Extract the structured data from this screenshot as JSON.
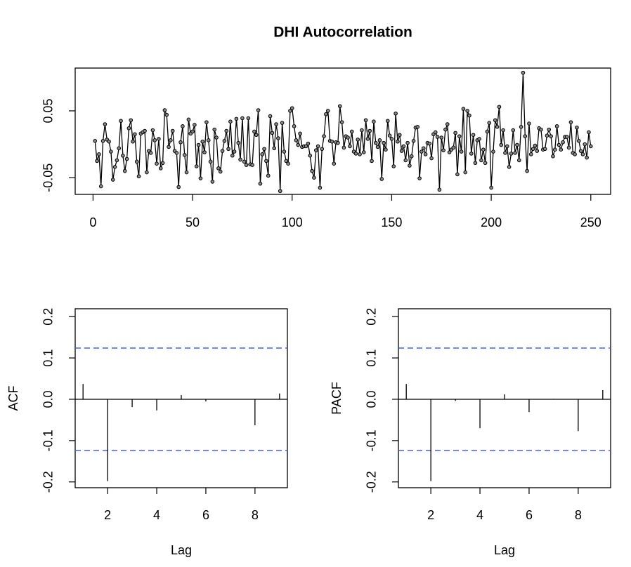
{
  "chart_data": [
    {
      "type": "line",
      "title": "DHI Autocorrelation",
      "x": [
        1,
        2,
        3,
        4,
        5,
        6,
        7,
        8,
        9,
        10,
        11,
        12,
        13,
        14,
        15,
        16,
        17,
        18,
        19,
        20,
        21,
        22,
        23,
        24,
        25,
        26,
        27,
        28,
        29,
        30,
        31,
        32,
        33,
        34,
        35,
        36,
        37,
        38,
        39,
        40,
        41,
        42,
        43,
        44,
        45,
        46,
        47,
        48,
        49,
        50,
        51,
        52,
        53,
        54,
        55,
        56,
        57,
        58,
        59,
        60,
        61,
        62,
        63,
        64,
        65,
        66,
        67,
        68,
        69,
        70,
        71,
        72,
        73,
        74,
        75,
        76,
        77,
        78,
        79,
        80,
        81,
        82,
        83,
        84,
        85,
        86,
        87,
        88,
        89,
        90,
        91,
        92,
        93,
        94,
        95,
        96,
        97,
        98,
        99,
        100,
        101,
        102,
        103,
        104,
        105,
        106,
        107,
        108,
        109,
        110,
        111,
        112,
        113,
        114,
        115,
        116,
        117,
        118,
        119,
        120,
        121,
        122,
        123,
        124,
        125,
        126,
        127,
        128,
        129,
        130,
        131,
        132,
        133,
        134,
        135,
        136,
        137,
        138,
        139,
        140,
        141,
        142,
        143,
        144,
        145,
        146,
        147,
        148,
        149,
        150,
        151,
        152,
        153,
        154,
        155,
        156,
        157,
        158,
        159,
        160,
        161,
        162,
        163,
        164,
        165,
        166,
        167,
        168,
        169,
        170,
        171,
        172,
        173,
        174,
        175,
        176,
        177,
        178,
        179,
        180,
        181,
        182,
        183,
        184,
        185,
        186,
        187,
        188,
        189,
        190,
        191,
        192,
        193,
        194,
        195,
        196,
        197,
        198,
        199,
        200,
        201,
        202,
        203,
        204,
        205,
        206,
        207,
        208,
        209,
        210,
        211,
        212,
        213,
        214,
        215,
        216,
        217,
        218,
        219,
        220,
        221,
        222,
        223,
        224,
        225,
        226,
        227,
        228,
        229,
        230,
        231,
        232,
        233,
        234,
        235,
        236,
        237,
        238,
        239,
        240,
        241,
        242,
        243,
        244,
        245,
        246,
        247,
        248,
        249,
        250
      ],
      "values": [
        0.005,
        -0.025,
        -0.015,
        -0.063,
        0.005,
        0.03,
        0.007,
        0.004,
        -0.011,
        -0.053,
        -0.034,
        -0.024,
        -0.006,
        0.035,
        -0.017,
        -0.04,
        -0.022,
        0.024,
        0.036,
        0.004,
        0.015,
        -0.026,
        -0.048,
        0.016,
        0.018,
        0.02,
        -0.042,
        -0.01,
        -0.013,
        0.021,
        0.006,
        -0.029,
        0.008,
        -0.036,
        -0.028,
        0.051,
        0.044,
        -0.004,
        0.006,
        0.02,
        -0.01,
        -0.013,
        -0.064,
        0.003,
        0.027,
        -0.016,
        -0.042,
        0.037,
        0.016,
        0.019,
        0.029,
        -0.033,
        -0.001,
        -0.051,
        0.004,
        -0.012,
        0.033,
        0.006,
        -0.026,
        -0.056,
        0.022,
        0.01,
        -0.036,
        -0.041,
        -0.01,
        0.005,
        0.02,
        -0.007,
        0.034,
        -0.017,
        -0.011,
        0.038,
        0.002,
        -0.023,
        0.039,
        -0.026,
        -0.031,
        0.039,
        -0.03,
        -0.031,
        0.019,
        0.014,
        0.051,
        -0.059,
        -0.015,
        -0.007,
        -0.025,
        -0.047,
        0.042,
        0.017,
        -0.006,
        0.03,
        0.009,
        -0.07,
        0.032,
        -0.011,
        -0.025,
        -0.029,
        0.05,
        0.054,
        0.027,
        0.006,
        -0.001,
        0.016,
        -0.004,
        -0.003,
        -0.003,
        0.001,
        -0.017,
        -0.04,
        -0.05,
        -0.009,
        -0.003,
        -0.065,
        -0.007,
        0.012,
        0.045,
        0.05,
        0.005,
        0.004,
        -0.029,
        0.003,
        0.002,
        0.057,
        0.033,
        -0.005,
        0.012,
        0.01,
        -0.003,
        0.019,
        -0.011,
        -0.014,
        0.007,
        -0.015,
        0.021,
        -0.012,
        0.036,
        0.008,
        0.02,
        -0.025,
        0.034,
        0.002,
        -0.004,
        0.006,
        -0.052,
        0.002,
        -0.008,
        0.035,
        0.013,
        0.008,
        -0.033,
        0.046,
        0.004,
        0.014,
        -0.01,
        -0.003,
        -0.024,
        0.002,
        -0.032,
        -0.018,
        0.005,
        0.025,
        0.026,
        -0.051,
        -0.011,
        -0.006,
        -0.015,
        0.002,
        0.001,
        -0.021,
        0.015,
        0.018,
        0.011,
        -0.068,
        0.01,
        -0.009,
        0.022,
        0.03,
        -0.012,
        -0.008,
        -0.005,
        0.017,
        -0.045,
        0.012,
        -0.011,
        0.053,
        -0.042,
        0.05,
        0.043,
        -0.014,
        0.014,
        -0.028,
        0.006,
        0.008,
        -0.024,
        -0.008,
        -0.028,
        0.019,
        0.032,
        -0.065,
        -0.011,
        0.036,
        0.026,
        0.056,
        -0.001,
        0.021,
        -0.013,
        -0.003,
        -0.034,
        -0.014,
        0.021,
        -0.013,
        -0.001,
        -0.024,
        0.026,
        0.107,
        0.012,
        -0.04,
        0.031,
        -0.015,
        -0.007,
        -0.002,
        -0.01,
        0.024,
        0.022,
        -0.008,
        -0.007,
        0.013,
        0.022,
        0.012,
        -0.018,
        -0.008,
        0.027,
        -0.001,
        -0.008,
        0.003,
        0.011,
        0.011,
        -0.005,
        0.033,
        -0.013,
        -0.015,
        0.025,
        0.005,
        -0.01,
        -0.015,
        0.0,
        -0.02,
        0.018,
        -0.003
      ],
      "color": "#000000",
      "xlim": [
        -8.96,
        259.96
      ],
      "xticks": [
        0,
        50,
        100,
        150,
        200,
        250
      ],
      "ylim": [
        -0.075,
        0.114
      ],
      "yticks": [
        -0.05,
        0.05
      ]
    },
    {
      "type": "acf",
      "y_label": "ACF",
      "x_label": "Lag",
      "x": [
        1,
        2,
        3,
        4,
        5,
        6,
        7,
        8,
        9
      ],
      "values": [
        0.037,
        -0.198,
        -0.019,
        -0.027,
        0.01,
        -0.005,
        -0.001,
        -0.063,
        0.014
      ],
      "color": "#000000",
      "conf_limit": 0.124,
      "conf_color": "#4a5cf0",
      "xlim": [
        0.68,
        9.32
      ],
      "xticks": [
        2,
        4,
        6,
        8
      ],
      "ylim": [
        -0.214,
        0.219
      ],
      "yticks": [
        -0.2,
        -0.1,
        {
          "value": 0,
          "label": "0.0"
        },
        0.1,
        0.2
      ]
    },
    {
      "type": "acf",
      "y_label": "PACF",
      "x_label": "Lag",
      "x": [
        1,
        2,
        3,
        4,
        5,
        6,
        7,
        8,
        9
      ],
      "values": [
        0.037,
        -0.198,
        -0.004,
        -0.07,
        0.012,
        -0.031,
        0.001,
        -0.077,
        0.022
      ],
      "color": "#000000",
      "conf_limit": 0.124,
      "conf_color": "#4a5cf0",
      "xlim": [
        0.68,
        9.32
      ],
      "xticks": [
        2,
        4,
        6,
        8
      ],
      "ylim": [
        -0.214,
        0.219
      ],
      "yticks": [
        -0.2,
        -0.1,
        {
          "value": 0,
          "label": "0.0"
        },
        0.1,
        0.2
      ]
    }
  ]
}
